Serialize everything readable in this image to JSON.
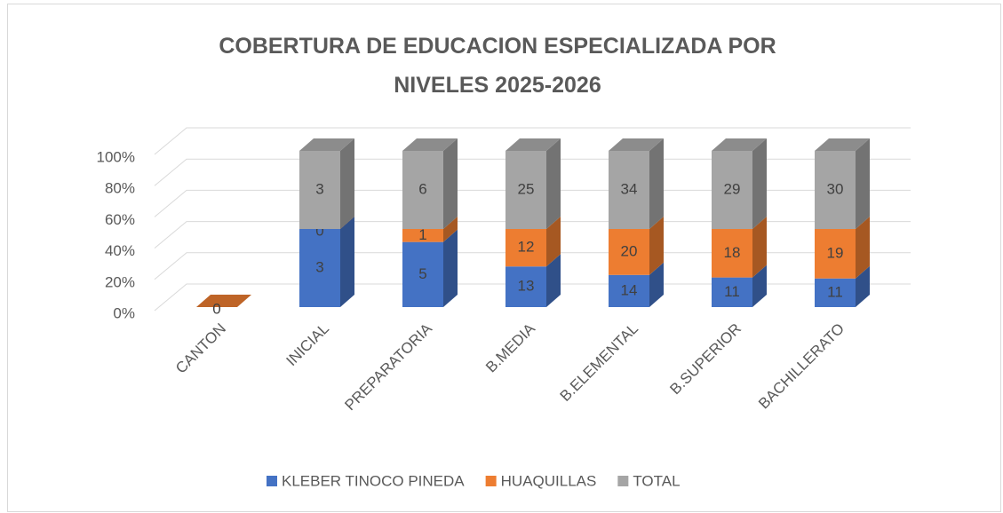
{
  "chart_data": {
    "type": "stacked_percent_bar_3d",
    "title": "COBERTURA DE EDUCACION ESPECIALIZADA POR NIVELES 2025-2026",
    "categories": [
      "CANTON",
      "INICIAL",
      "PREPARATORIA",
      "B.MEDIA",
      "B.ELEMENTAL",
      "B.SUPERIOR",
      "BACHILLERATO"
    ],
    "series": [
      {
        "name": "KLEBER TINOCO PINEDA",
        "color": "#4472c4",
        "values": [
          null,
          3,
          5,
          13,
          14,
          11,
          11
        ]
      },
      {
        "name": "HUAQUILLAS",
        "color": "#ed7d31",
        "values": [
          0,
          0,
          1,
          12,
          20,
          18,
          19
        ]
      },
      {
        "name": "TOTAL",
        "color": "#a5a5a5",
        "values": [
          null,
          3,
          6,
          25,
          34,
          29,
          30
        ]
      }
    ],
    "ylim": [
      0,
      100
    ],
    "yticks": [
      {
        "value": 0,
        "label": "0%"
      },
      {
        "value": 20,
        "label": "20%"
      },
      {
        "value": 40,
        "label": "40%"
      },
      {
        "value": 60,
        "label": "60%"
      },
      {
        "value": 80,
        "label": "80%"
      },
      {
        "value": 100,
        "label": "100%"
      }
    ],
    "grid": true,
    "legend": "bottom"
  }
}
